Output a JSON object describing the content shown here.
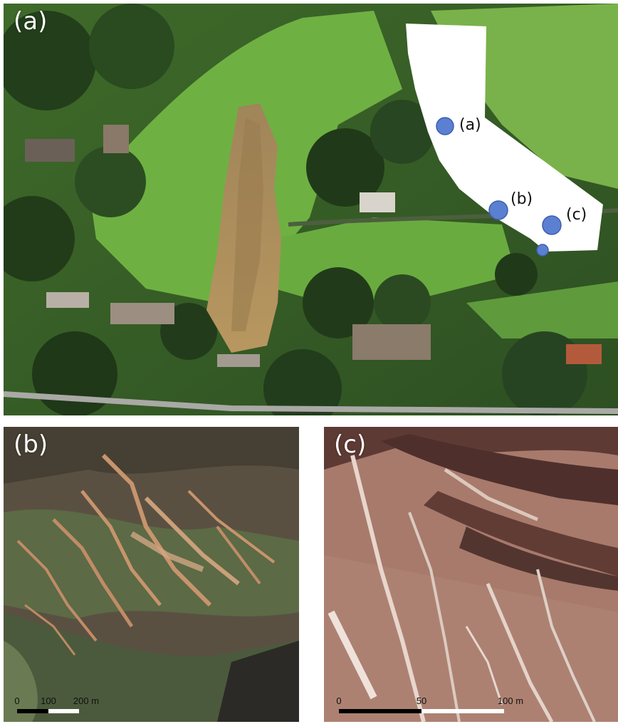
{
  "panels": {
    "a": {
      "label": "(a)",
      "inset": {
        "icon": "california-map-icon",
        "markers": [
          {
            "label": "(a)"
          },
          {
            "label": "(b)"
          },
          {
            "label": "(c)"
          },
          {
            "label": ""
          }
        ],
        "marker_color": "#5b7fd1"
      }
    },
    "b": {
      "label": "(b)",
      "scalebar": {
        "ticks": [
          "0",
          "100",
          "200 m"
        ]
      }
    },
    "c": {
      "label": "(c)",
      "scalebar": {
        "ticks": [
          "0",
          "50",
          "100 m"
        ]
      }
    }
  }
}
